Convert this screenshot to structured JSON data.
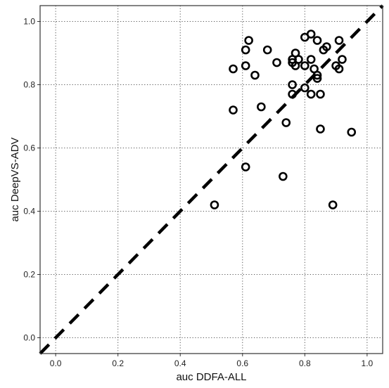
{
  "chart_data": {
    "type": "scatter",
    "xlabel": "auc DDFA-ALL",
    "ylabel": "auc DeepVS-ADV",
    "xlim": [
      -0.05,
      1.05
    ],
    "ylim": [
      -0.05,
      1.05
    ],
    "x_ticks": [
      0.0,
      0.2,
      0.4,
      0.6,
      0.8,
      1.0
    ],
    "y_ticks": [
      0.0,
      0.2,
      0.4,
      0.6,
      0.8,
      1.0
    ],
    "x_tick_labels": [
      "0.0",
      "0.2",
      "0.4",
      "0.6",
      "0.8",
      "1.0"
    ],
    "y_tick_labels": [
      "0.0",
      "0.2",
      "0.4",
      "0.6",
      "0.8",
      "1.0"
    ],
    "grid": true,
    "reference_line": {
      "style": "dashed",
      "from": [
        -0.05,
        -0.05
      ],
      "to": [
        1.05,
        1.05
      ]
    },
    "points": [
      {
        "x": 0.51,
        "y": 0.42
      },
      {
        "x": 0.57,
        "y": 0.85
      },
      {
        "x": 0.57,
        "y": 0.72
      },
      {
        "x": 0.61,
        "y": 0.91
      },
      {
        "x": 0.61,
        "y": 0.86
      },
      {
        "x": 0.61,
        "y": 0.54
      },
      {
        "x": 0.62,
        "y": 0.94
      },
      {
        "x": 0.64,
        "y": 0.83
      },
      {
        "x": 0.66,
        "y": 0.73
      },
      {
        "x": 0.68,
        "y": 0.91
      },
      {
        "x": 0.71,
        "y": 0.87
      },
      {
        "x": 0.73,
        "y": 0.51
      },
      {
        "x": 0.74,
        "y": 0.68
      },
      {
        "x": 0.76,
        "y": 0.88
      },
      {
        "x": 0.76,
        "y": 0.87
      },
      {
        "x": 0.76,
        "y": 0.8
      },
      {
        "x": 0.76,
        "y": 0.77
      },
      {
        "x": 0.77,
        "y": 0.9
      },
      {
        "x": 0.77,
        "y": 0.86
      },
      {
        "x": 0.78,
        "y": 0.88
      },
      {
        "x": 0.8,
        "y": 0.95
      },
      {
        "x": 0.8,
        "y": 0.86
      },
      {
        "x": 0.8,
        "y": 0.79
      },
      {
        "x": 0.82,
        "y": 0.96
      },
      {
        "x": 0.82,
        "y": 0.88
      },
      {
        "x": 0.82,
        "y": 0.77
      },
      {
        "x": 0.83,
        "y": 0.85
      },
      {
        "x": 0.84,
        "y": 0.94
      },
      {
        "x": 0.84,
        "y": 0.83
      },
      {
        "x": 0.84,
        "y": 0.82
      },
      {
        "x": 0.85,
        "y": 0.77
      },
      {
        "x": 0.85,
        "y": 0.66
      },
      {
        "x": 0.86,
        "y": 0.91
      },
      {
        "x": 0.87,
        "y": 0.92
      },
      {
        "x": 0.89,
        "y": 0.42
      },
      {
        "x": 0.9,
        "y": 0.86
      },
      {
        "x": 0.91,
        "y": 0.94
      },
      {
        "x": 0.91,
        "y": 0.85
      },
      {
        "x": 0.92,
        "y": 0.88
      },
      {
        "x": 0.95,
        "y": 0.65
      }
    ]
  }
}
